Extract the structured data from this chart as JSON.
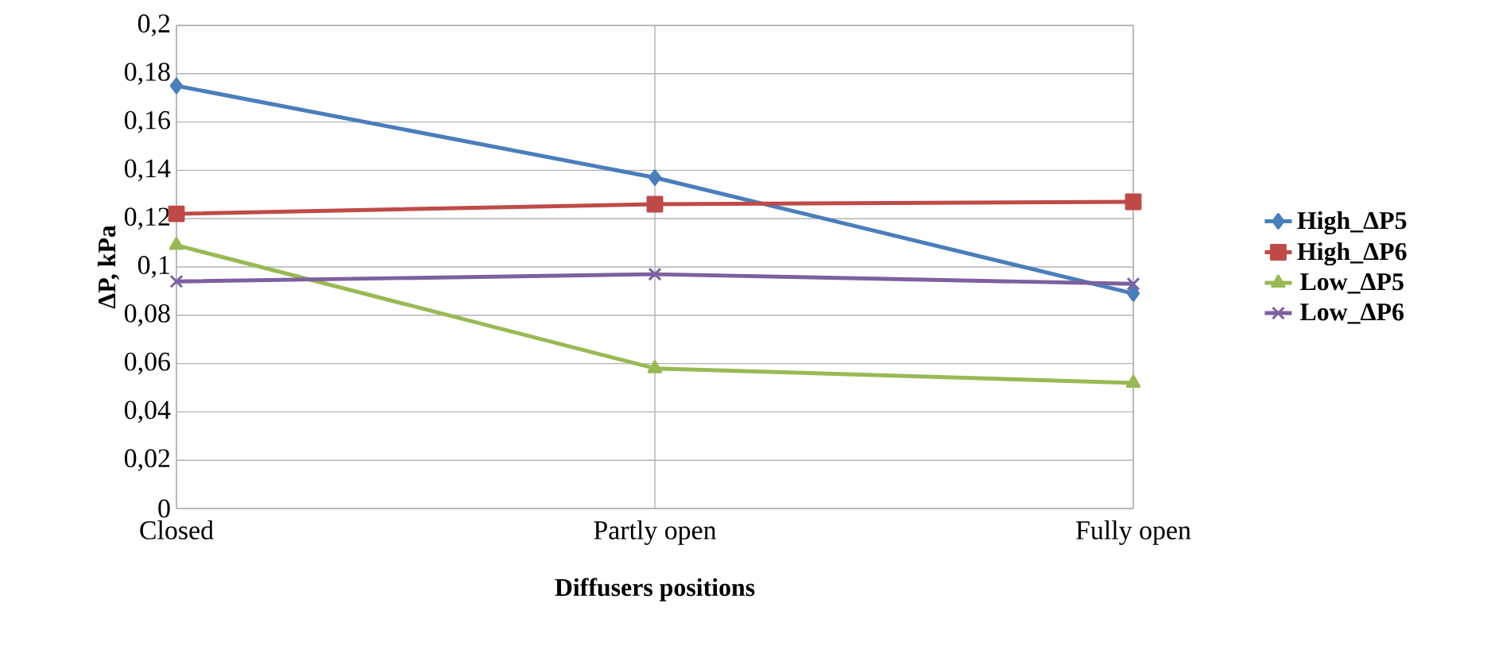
{
  "chart_data": {
    "type": "line",
    "xlabel": "Diffusers  positions",
    "ylabel": "ΔP, kPa",
    "categories": [
      "Closed",
      "Partly open",
      "Fully open"
    ],
    "series": [
      {
        "name": "High_ΔP5",
        "color": "#4a7ebb",
        "marker": "diamond",
        "values": [
          0.175,
          0.137,
          0.089
        ]
      },
      {
        "name": "High_ΔP6",
        "color": "#be4b48",
        "marker": "square",
        "values": [
          0.122,
          0.126,
          0.127
        ]
      },
      {
        "name": "Low_ΔP5",
        "color": "#98b954",
        "marker": "triangle",
        "values": [
          0.109,
          0.058,
          0.052
        ]
      },
      {
        "name": "Low_ΔP6",
        "color": "#7d60a0",
        "marker": "cross",
        "values": [
          0.094,
          0.097,
          0.093
        ]
      }
    ],
    "ylim": [
      0,
      0.2
    ],
    "yticks": [
      {
        "value": 0,
        "label": "0"
      },
      {
        "value": 0.02,
        "label": "0,02"
      },
      {
        "value": 0.04,
        "label": "0,04"
      },
      {
        "value": 0.06,
        "label": "0,06"
      },
      {
        "value": 0.08,
        "label": "0,08"
      },
      {
        "value": 0.1,
        "label": "0,1"
      },
      {
        "value": 0.12,
        "label": "0,12"
      },
      {
        "value": 0.14,
        "label": "0,14"
      },
      {
        "value": 0.16,
        "label": "0,16"
      },
      {
        "value": 0.18,
        "label": "0,18"
      },
      {
        "value": 0.2,
        "label": "0,2"
      }
    ],
    "grid": true,
    "legend": "right",
    "line_style": "solid"
  }
}
